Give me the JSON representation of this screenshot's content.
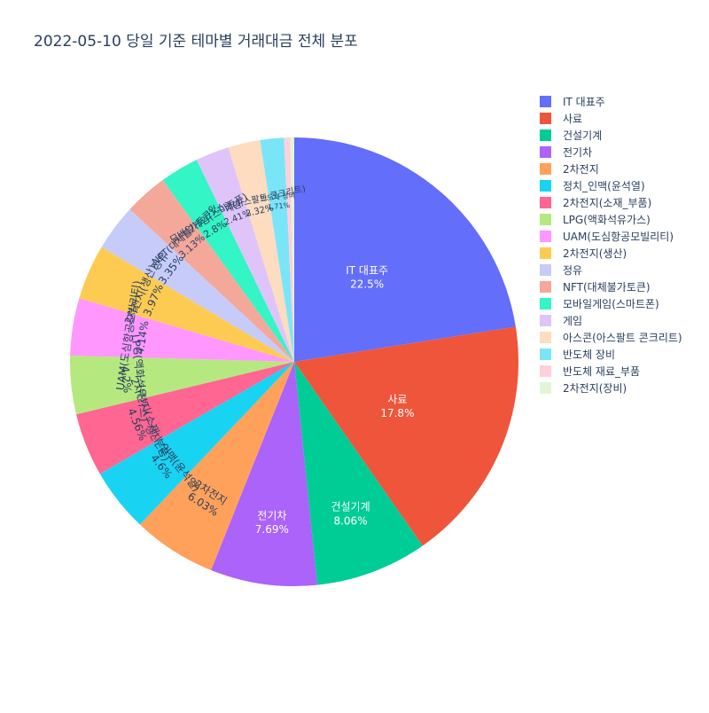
{
  "chart_data": {
    "type": "pie",
    "title": "2022-05-10 당일 기준 테마별 거래대금 전체 분포",
    "legend_position": "right",
    "slices": [
      {
        "label": "IT 대표주",
        "value": 22.5,
        "percent_label": "22.5%",
        "color": "#636efa"
      },
      {
        "label": "사료",
        "value": 17.8,
        "percent_label": "17.8%",
        "color": "#ef553b"
      },
      {
        "label": "건설기계",
        "value": 8.06,
        "percent_label": "8.06%",
        "color": "#00cc96"
      },
      {
        "label": "전기차",
        "value": 7.69,
        "percent_label": "7.69%",
        "color": "#ab63fa"
      },
      {
        "label": "2차전지",
        "value": 6.03,
        "percent_label": "6.03%",
        "color": "#ffa15a"
      },
      {
        "label": "정치_인맥(윤석열)",
        "value": 4.6,
        "percent_label": "4.6%",
        "color": "#19d3f3"
      },
      {
        "label": "2차전지(소재_부품)",
        "value": 4.56,
        "percent_label": "4.56%",
        "color": "#ff6692"
      },
      {
        "label": "LPG(액화석유가스)",
        "value": 4.2,
        "percent_label": "4.2%",
        "color": "#b6e880"
      },
      {
        "label": "UAM(도심항공모빌리티)",
        "value": 4.14,
        "percent_label": "4.14%",
        "color": "#ff97ff"
      },
      {
        "label": "2차전지(생산)",
        "value": 3.97,
        "percent_label": "3.97%",
        "color": "#fecb52"
      },
      {
        "label": "정유",
        "value": 3.35,
        "percent_label": "3.35%",
        "color": "#c6cbf9"
      },
      {
        "label": "NFT(대체불가토큰)",
        "value": 3.13,
        "percent_label": "3.13%",
        "color": "#f4a89a"
      },
      {
        "label": "모바일게임(스마트폰)",
        "value": 2.8,
        "percent_label": "2.8%",
        "color": "#33f5c5"
      },
      {
        "label": "게임",
        "value": 2.41,
        "percent_label": "2.41%",
        "color": "#dfc4fa"
      },
      {
        "label": "아스콘(아스팔트 콘크리트)",
        "value": 2.32,
        "percent_label": "2.32%",
        "color": "#fddcc0"
      },
      {
        "label": "반도체 장비",
        "value": 1.71,
        "percent_label": "1.71%",
        "color": "#7be5f8"
      },
      {
        "label": "반도체 재료_부품",
        "value": 0.45,
        "percent_label": "",
        "color": "#ffcfdc"
      },
      {
        "label": "2차전지(장비)",
        "value": 0.28,
        "percent_label": "",
        "color": "#e2f6d5"
      }
    ]
  }
}
